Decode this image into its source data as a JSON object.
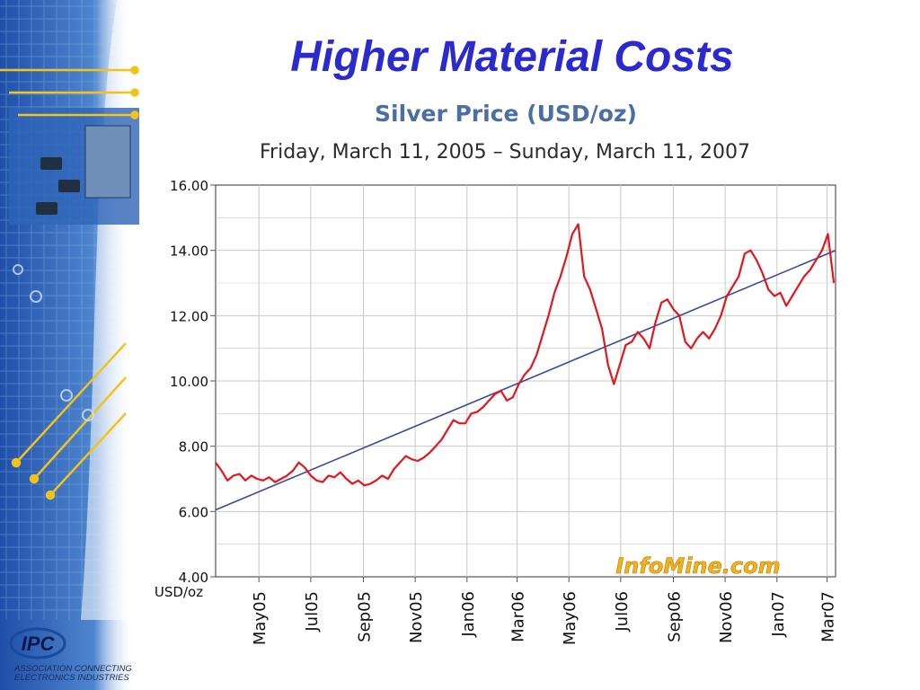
{
  "slide": {
    "title": "Higher Material Costs"
  },
  "logo": {
    "text": "IPC",
    "tagline_line1": "ASSOCIATION CONNECTING",
    "tagline_line2": "ELECTRONICS INDUSTRIES"
  },
  "watermark": "InfoMine.com",
  "colors": {
    "title": "#2a2ad0",
    "price_line": "#e0171f",
    "trend_line": "#3a4a9a",
    "chart_title": "#4a6fa5",
    "grid": "#c8c8c8"
  },
  "chart_data": {
    "type": "line",
    "title": "Silver Price (USD/oz)",
    "subtitle": "Friday, March 11, 2005 – Sunday, March 11, 2007",
    "ylabel": "USD/oz",
    "xlabel": "",
    "ylim": [
      4.0,
      16.0
    ],
    "ytick_labels": [
      "16.00",
      "14.00",
      "12.00",
      "10.00",
      "8.00",
      "6.00",
      "4.00"
    ],
    "ytick_values": [
      16,
      14,
      12,
      10,
      8,
      6,
      4
    ],
    "xlim": [
      "2005-03-11",
      "2007-03-11"
    ],
    "xtick_labels": [
      "May05",
      "Jul05",
      "Sep05",
      "Nov05",
      "Jan06",
      "Mar06",
      "May06",
      "Jul06",
      "Sep06",
      "Nov06",
      "Jan07",
      "Mar07"
    ],
    "xtick_dates": [
      "2005-05-01",
      "2005-07-01",
      "2005-09-01",
      "2005-11-01",
      "2006-01-01",
      "2006-03-01",
      "2006-05-01",
      "2006-07-01",
      "2006-09-01",
      "2006-11-01",
      "2007-01-01",
      "2007-03-01"
    ],
    "grid": true,
    "series": [
      {
        "kind": "price",
        "x": [
          "2005-03-11",
          "2005-03-18",
          "2005-03-25",
          "2005-04-01",
          "2005-04-08",
          "2005-04-15",
          "2005-04-22",
          "2005-04-29",
          "2005-05-06",
          "2005-05-13",
          "2005-05-20",
          "2005-05-27",
          "2005-06-03",
          "2005-06-10",
          "2005-06-17",
          "2005-06-24",
          "2005-07-01",
          "2005-07-08",
          "2005-07-15",
          "2005-07-22",
          "2005-07-29",
          "2005-08-05",
          "2005-08-12",
          "2005-08-19",
          "2005-08-26",
          "2005-09-02",
          "2005-09-09",
          "2005-09-16",
          "2005-09-23",
          "2005-09-30",
          "2005-10-07",
          "2005-10-14",
          "2005-10-21",
          "2005-10-28",
          "2005-11-04",
          "2005-11-11",
          "2005-11-18",
          "2005-11-25",
          "2005-12-02",
          "2005-12-09",
          "2005-12-16",
          "2005-12-23",
          "2005-12-30",
          "2006-01-06",
          "2006-01-13",
          "2006-01-20",
          "2006-01-27",
          "2006-02-03",
          "2006-02-10",
          "2006-02-17",
          "2006-02-24",
          "2006-03-03",
          "2006-03-10",
          "2006-03-17",
          "2006-03-24",
          "2006-03-31",
          "2006-04-07",
          "2006-04-14",
          "2006-04-21",
          "2006-04-28",
          "2006-05-05",
          "2006-05-12",
          "2006-05-19",
          "2006-05-26",
          "2006-06-02",
          "2006-06-09",
          "2006-06-16",
          "2006-06-23",
          "2006-06-30",
          "2006-07-07",
          "2006-07-14",
          "2006-07-21",
          "2006-07-28",
          "2006-08-04",
          "2006-08-11",
          "2006-08-18",
          "2006-08-25",
          "2006-09-01",
          "2006-09-08",
          "2006-09-15",
          "2006-09-22",
          "2006-09-29",
          "2006-10-06",
          "2006-10-13",
          "2006-10-20",
          "2006-10-27",
          "2006-11-03",
          "2006-11-10",
          "2006-11-17",
          "2006-11-24",
          "2006-12-01",
          "2006-12-08",
          "2006-12-15",
          "2006-12-22",
          "2006-12-29",
          "2007-01-05",
          "2007-01-12",
          "2007-01-19",
          "2007-01-26",
          "2007-02-02",
          "2007-02-09",
          "2007-02-16",
          "2007-02-23",
          "2007-03-02",
          "2007-03-09"
        ],
        "y": [
          7.5,
          7.25,
          6.95,
          7.1,
          7.15,
          6.95,
          7.1,
          7.0,
          6.95,
          7.05,
          6.9,
          7.0,
          7.1,
          7.25,
          7.5,
          7.35,
          7.1,
          6.95,
          6.9,
          7.1,
          7.05,
          7.2,
          7.0,
          6.85,
          6.95,
          6.8,
          6.85,
          6.95,
          7.1,
          7.0,
          7.3,
          7.5,
          7.7,
          7.6,
          7.55,
          7.65,
          7.8,
          8.0,
          8.2,
          8.5,
          8.8,
          8.7,
          8.7,
          9.0,
          9.05,
          9.2,
          9.4,
          9.6,
          9.7,
          9.4,
          9.5,
          9.9,
          10.2,
          10.4,
          10.8,
          11.4,
          12.0,
          12.7,
          13.2,
          13.8,
          14.5,
          14.8,
          13.2,
          12.8,
          12.2,
          11.6,
          10.5,
          9.9,
          10.5,
          11.1,
          11.2,
          11.5,
          11.3,
          11.0,
          11.8,
          12.4,
          12.5,
          12.2,
          12.0,
          11.2,
          11.0,
          11.3,
          11.5,
          11.3,
          11.6,
          12.0,
          12.6,
          12.9,
          13.2,
          13.9,
          14.0,
          13.7,
          13.3,
          12.8,
          12.6,
          12.7,
          12.3,
          12.6,
          12.9,
          13.2,
          13.4,
          13.7,
          14.0,
          14.5,
          13.0
        ]
      },
      {
        "kind": "trend",
        "x": [
          "2005-03-11",
          "2007-03-11"
        ],
        "y": [
          6.05,
          14.0
        ]
      }
    ]
  }
}
